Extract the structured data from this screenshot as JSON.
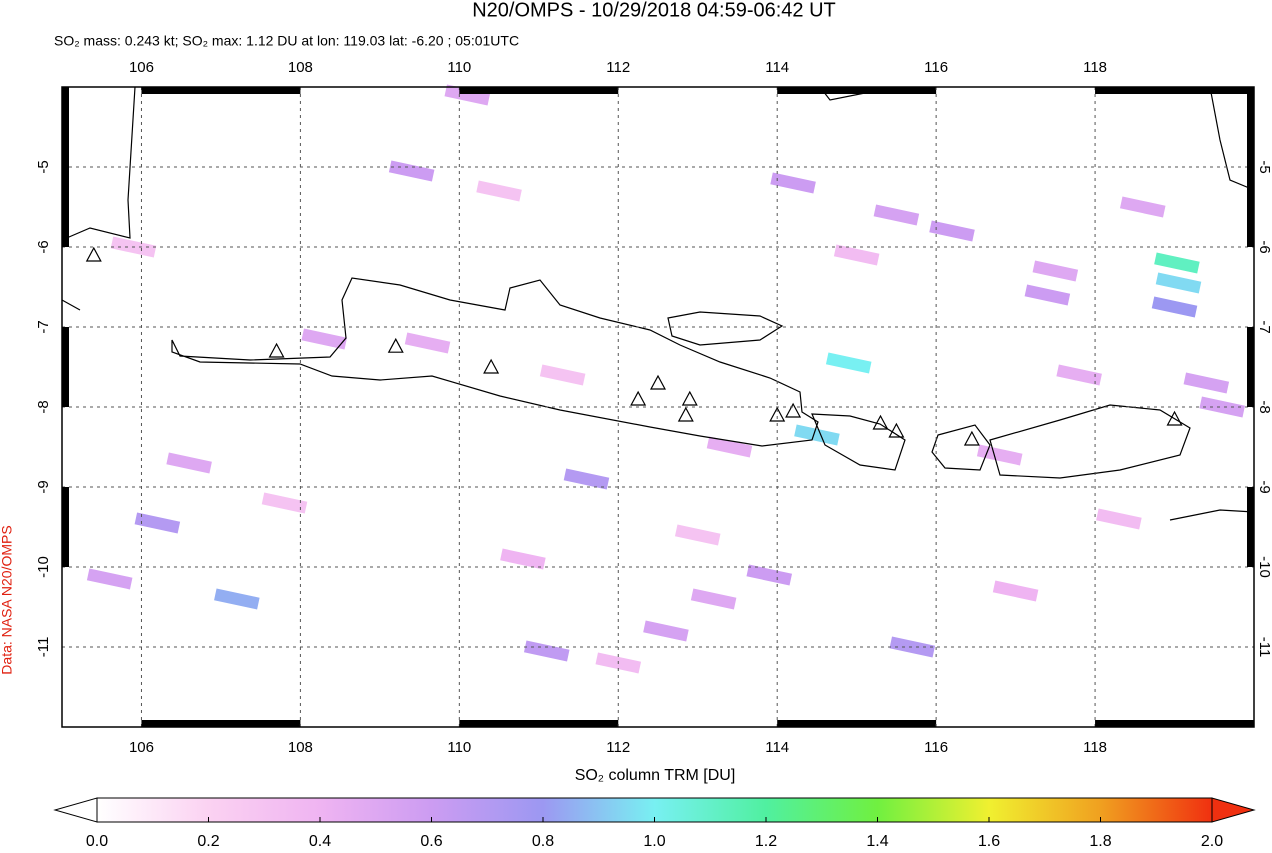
{
  "chart_data": {
    "type": "swath-map",
    "title": "N20/OMPS - 10/29/2018 04:59-06:42 UT",
    "subtitle": "SO₂ mass: 0.243 kt; SO₂ max: 1.12 DU at lon: 119.03 lat: -6.20 ; 05:01UTC",
    "side_label": "Data: NASA N20/OMPS",
    "colorbar_label": "SO₂ column TRM [DU]",
    "xlim": [
      105,
      120
    ],
    "ylim": [
      -12,
      -4
    ],
    "xticks": [
      106,
      108,
      110,
      112,
      114,
      116,
      118
    ],
    "yticks": [
      -5,
      -6,
      -7,
      -8,
      -9,
      -10,
      -11
    ],
    "grid": true,
    "colorbar_lim": [
      0,
      2
    ],
    "colorbar_ticks": [
      {
        "value": 0,
        "label": "0.0"
      },
      {
        "value": 0.2,
        "label": "0.2"
      },
      {
        "value": 0.4,
        "label": "0.4"
      },
      {
        "value": 0.6,
        "label": "0.6"
      },
      {
        "value": 0.8,
        "label": "0.8"
      },
      {
        "value": 1,
        "label": "1.0"
      },
      {
        "value": 1.2,
        "label": "1.2"
      },
      {
        "value": 1.4,
        "label": "1.4"
      },
      {
        "value": 1.6,
        "label": "1.6"
      },
      {
        "value": 1.8,
        "label": "1.8"
      },
      {
        "value": 2,
        "label": "2.0"
      }
    ],
    "colormap": [
      "#ffffff",
      "#fbd2f2",
      "#efb4f2",
      "#cc9cf2",
      "#9c98f2",
      "#78f0f2",
      "#50f0a0",
      "#70f040",
      "#f0f030",
      "#f0a020",
      "#f03010"
    ],
    "pixels": {
      "lon": [
        114.9,
        114.5,
        119.03,
        119.05,
        119.0,
        115.7,
        111.6,
        111.1,
        107.2,
        106.2,
        109.4,
        110.1,
        114.2,
        115.5,
        116.2,
        117.5,
        117.4,
        113.2,
        112.6,
        113.9,
        105.6,
        106.6,
        108.3,
        109.6,
        110.8,
        112.0,
        113.4,
        116.8,
        118.6,
        117.8,
        119.4,
        105.9,
        107.8,
        111.3,
        115.0,
        117.0,
        118.3,
        119.6,
        110.5,
        113.0
      ],
      "lat": [
        -7.45,
        -8.35,
        -6.2,
        -6.45,
        -6.75,
        -11.0,
        -8.9,
        -11.05,
        -10.4,
        -9.45,
        -5.05,
        -4.1,
        -5.2,
        -5.6,
        -5.8,
        -6.3,
        -6.6,
        -10.4,
        -10.8,
        -10.1,
        -10.15,
        -8.7,
        -7.15,
        -7.2,
        -9.9,
        -11.2,
        -8.5,
        -8.6,
        -5.5,
        -7.6,
        -7.7,
        -6.0,
        -9.2,
        -7.6,
        -6.1,
        -10.3,
        -9.4,
        -8.0,
        -5.3,
        -9.6
      ],
      "values": [
        1.0,
        0.95,
        1.12,
        0.95,
        0.8,
        0.7,
        0.7,
        0.65,
        0.85,
        0.7,
        0.6,
        0.5,
        0.6,
        0.55,
        0.6,
        0.5,
        0.6,
        0.5,
        0.55,
        0.6,
        0.55,
        0.5,
        0.5,
        0.45,
        0.4,
        0.35,
        0.45,
        0.45,
        0.5,
        0.45,
        0.55,
        0.3,
        0.3,
        0.3,
        0.35,
        0.4,
        0.35,
        0.55,
        0.3,
        0.3
      ]
    },
    "volcanoes": {
      "lon": [
        105.4,
        107.7,
        109.2,
        110.4,
        112.25,
        112.5,
        112.9,
        112.85,
        114.0,
        114.2,
        115.3,
        115.5,
        116.45,
        119.0
      ],
      "lat": [
        -6.1,
        -7.3,
        -7.24,
        -7.5,
        -7.9,
        -7.7,
        -7.9,
        -8.1,
        -8.1,
        -8.05,
        -8.2,
        -8.3,
        -8.4,
        -8.15
      ]
    }
  }
}
